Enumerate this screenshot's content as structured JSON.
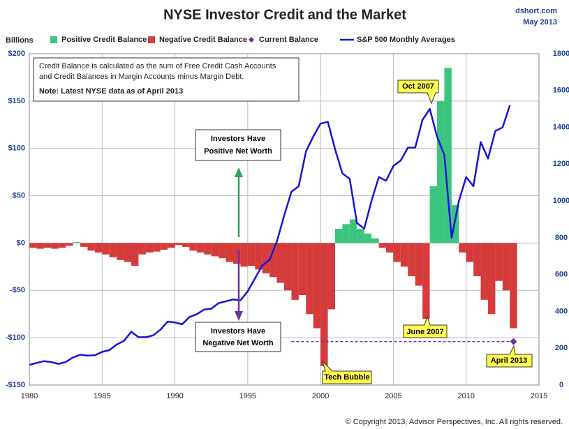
{
  "chart_data": {
    "type": "combo",
    "title": "NYSE Investor Credit and the Market",
    "source": "dshort.com",
    "date": "May 2013",
    "y_label": "Billions",
    "info_lines": [
      "Credit Balance is calculated as the sum of Free Credit Cash Accounts",
      "and Credit Balances in Margin Accounts minus Margin Debt."
    ],
    "note": "Note: Latest NYSE data as of April 2013",
    "annotations": {
      "positive": [
        "Investors Have",
        "Positive Net Worth"
      ],
      "negative": [
        "Investors Have",
        "Negative Net Worth"
      ],
      "oct2007": "Oct 2007",
      "june2007": "June 2007",
      "tech": "Tech Bubble",
      "april2013": "April 2013"
    },
    "copyright": "© Copyright 2013, Advisor Perspectives, Inc. All rights reserved.",
    "xlim": [
      1980,
      2015
    ],
    "xticks": [
      1980,
      1985,
      1990,
      1995,
      2000,
      2005,
      2010,
      2015
    ],
    "ylim": [
      -150,
      200
    ],
    "yticks": [
      {
        "value": -150,
        "label": "-$150"
      },
      {
        "value": -100,
        "label": "-$100"
      },
      {
        "value": -50,
        "label": "-$50"
      },
      {
        "value": 0,
        "label": "$0"
      },
      {
        "value": 50,
        "label": "$50"
      },
      {
        "value": 100,
        "label": "$100"
      },
      {
        "value": 150,
        "label": "$150"
      },
      {
        "value": 200,
        "label": "$200"
      }
    ],
    "y2lim": [
      0,
      1800
    ],
    "y2ticks": [
      0,
      200,
      400,
      600,
      800,
      1000,
      1200,
      1400,
      1600,
      1800
    ],
    "grid": true,
    "x": [
      1980,
      1980.5,
      1981,
      1981.5,
      1982,
      1982.5,
      1983,
      1983.5,
      1984,
      1984.5,
      1985,
      1985.5,
      1986,
      1986.5,
      1987,
      1987.5,
      1988,
      1988.5,
      1989,
      1989.5,
      1990,
      1990.5,
      1991,
      1991.5,
      1992,
      1992.5,
      1993,
      1993.5,
      1994,
      1994.5,
      1995,
      1995.5,
      1996,
      1996.5,
      1997,
      1997.5,
      1998,
      1998.5,
      1999,
      1999.5,
      2000,
      2000.5,
      2001,
      2001.5,
      2002,
      2002.5,
      2003,
      2003.5,
      2004,
      2004.5,
      2005,
      2005.5,
      2006,
      2006.5,
      2007,
      2007.5,
      2008,
      2008.5,
      2009,
      2009.5,
      2010,
      2010.5,
      2011,
      2011.5,
      2012,
      2012.5,
      2013
    ],
    "series": [
      {
        "name": "Positive Credit Balance",
        "color": "#3cc57f",
        "values": [
          null,
          null,
          null,
          null,
          null,
          null,
          1,
          null,
          null,
          null,
          null,
          null,
          null,
          null,
          null,
          null,
          null,
          null,
          null,
          null,
          null,
          null,
          null,
          null,
          null,
          null,
          null,
          null,
          null,
          null,
          null,
          null,
          null,
          null,
          null,
          null,
          null,
          null,
          null,
          null,
          null,
          null,
          15,
          20,
          25,
          15,
          10,
          5,
          null,
          null,
          null,
          null,
          null,
          null,
          null,
          60,
          150,
          185,
          40,
          null,
          null,
          null,
          null,
          null,
          null,
          null,
          null
        ]
      },
      {
        "name": "Negative Credit Balance",
        "color": "#d63b3b",
        "values": [
          -5,
          -6,
          -5,
          -6,
          -5,
          -3,
          null,
          -4,
          -8,
          -10,
          -12,
          -15,
          -18,
          -20,
          -24,
          -12,
          -10,
          -9,
          -7,
          -5,
          -2,
          -4,
          -8,
          -10,
          -12,
          -14,
          -16,
          -20,
          -22,
          -25,
          -24,
          -28,
          -32,
          -36,
          -42,
          -50,
          -60,
          -55,
          -75,
          -90,
          -130,
          -70,
          null,
          null,
          null,
          null,
          null,
          null,
          -5,
          -10,
          -20,
          -25,
          -35,
          -45,
          -80,
          null,
          null,
          null,
          null,
          -10,
          -20,
          -35,
          -60,
          -75,
          -40,
          -50,
          -90
        ]
      },
      {
        "name": "Current Balance",
        "color": "#7030a0",
        "x": [
          2013.25
        ],
        "values": [
          -104
        ]
      },
      {
        "name": "S&P 500 Monthly Averages",
        "color": "#1515d8",
        "axis": "y2",
        "values": [
          110,
          120,
          130,
          125,
          115,
          125,
          150,
          165,
          160,
          162,
          180,
          190,
          220,
          240,
          290,
          260,
          260,
          270,
          300,
          345,
          340,
          330,
          370,
          385,
          410,
          415,
          445,
          455,
          465,
          460,
          510,
          580,
          650,
          680,
          780,
          920,
          1050,
          1080,
          1270,
          1350,
          1420,
          1430,
          1280,
          1150,
          1120,
          880,
          850,
          1000,
          1130,
          1110,
          1190,
          1220,
          1290,
          1290,
          1440,
          1500,
          1350,
          1250,
          800,
          1000,
          1130,
          1080,
          1320,
          1230,
          1380,
          1400,
          1520
        ]
      }
    ]
  }
}
